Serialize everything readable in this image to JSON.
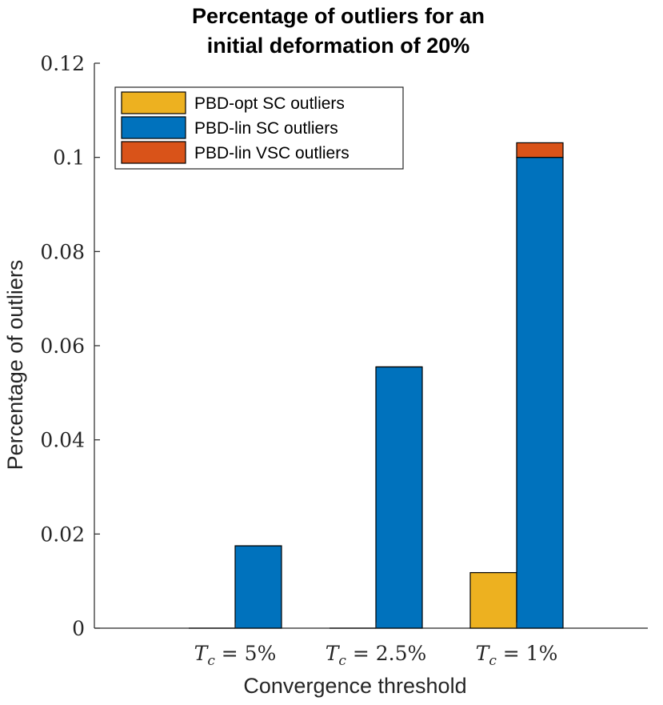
{
  "chart_data": {
    "type": "bar",
    "stacked": true,
    "title_lines": [
      "Percentage of outliers for an",
      "initial deformation of 20%"
    ],
    "xlabel": "Convergence threshold",
    "ylabel": "Percentage of outliers",
    "ylim": [
      0,
      0.12
    ],
    "yticks": [
      0,
      0.02,
      0.04,
      0.06,
      0.08,
      0.1,
      0.12
    ],
    "ytick_labels": [
      "0",
      "0.02",
      "0.04",
      "0.06",
      "0.08",
      "0.1",
      "0.12"
    ],
    "categories": [
      {
        "var": "T",
        "sub": "c",
        "rest": " = 5%"
      },
      {
        "var": "T",
        "sub": "c",
        "rest": " = 2.5%"
      },
      {
        "var": "T",
        "sub": "c",
        "rest": " = 1%"
      }
    ],
    "series": [
      {
        "name": "PBD-opt SC outliers",
        "color": "#EDB120",
        "group": "opt",
        "values": [
          0,
          0,
          0.0118
        ]
      },
      {
        "name": "PBD-lin SC outliers",
        "color": "#0072BD",
        "group": "lin",
        "values": [
          0.0175,
          0.0555,
          0.1
        ]
      },
      {
        "name": "PBD-lin VSC outliers",
        "color": "#D95319",
        "group": "lin",
        "values": [
          0,
          0,
          0.0031
        ]
      }
    ],
    "legend_position": "top-left",
    "grid": false
  }
}
